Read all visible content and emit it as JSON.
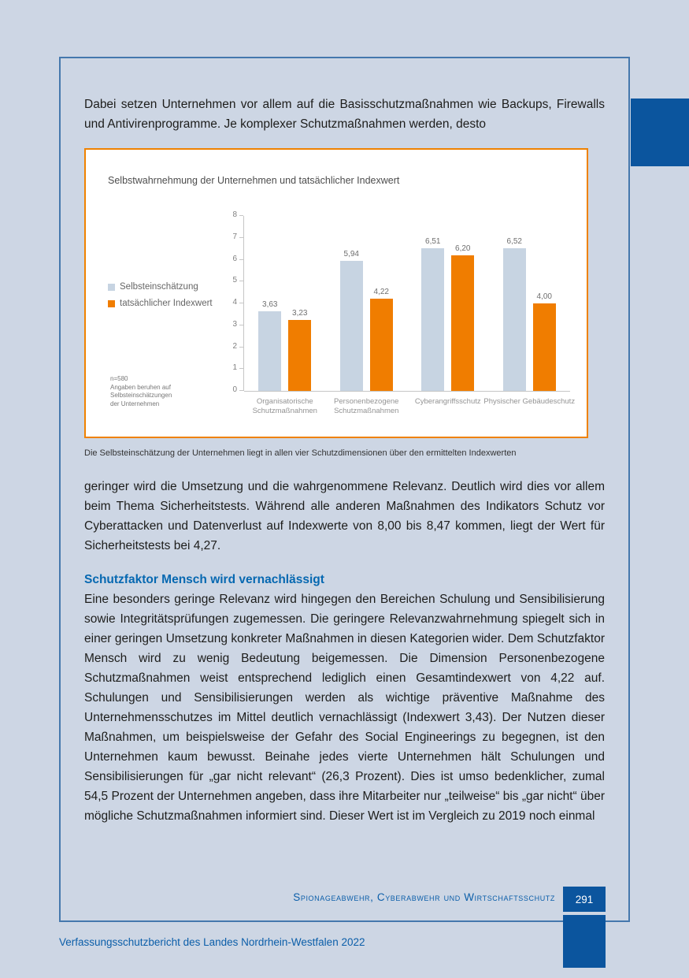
{
  "colors": {
    "page_background": "#cdd6e4",
    "frame_border_blue": "#4578ad",
    "dark_blue": "#0b559e",
    "heading_blue": "#0668b1",
    "chart_border_orange": "#ef8200",
    "bar_light_blue": "#c7d4e2",
    "bar_orange": "#f07d00"
  },
  "intro_paragraph": "Dabei setzen Unternehmen vor allem auf die Basisschutzmaßnahmen wie Backups, Firewalls und Antivirenprogramme. Je komplexer Schutzmaßnahmen werden, desto",
  "chart_data": {
    "type": "bar",
    "title": "Selbstwahrnehmung der Unternehmen und tatsächlicher Indexwert",
    "categories": [
      "Organisatorische Schutzmaßnahmen",
      "Personenbezogene Schutzmaßnahmen",
      "Cyberangriffsschutz",
      "Physischer Gebäudeschutz"
    ],
    "series": [
      {
        "name": "Selbsteinschätzung",
        "color": "#c7d4e2",
        "values": [
          3.63,
          5.94,
          6.51,
          6.52
        ],
        "value_labels": [
          "3,63",
          "5,94",
          "6,51",
          "6,52"
        ]
      },
      {
        "name": "tatsächlicher Indexwert",
        "color": "#f07d00",
        "values": [
          3.23,
          4.22,
          6.2,
          4.0
        ],
        "value_labels": [
          "3,23",
          "4,22",
          "6,20",
          "4,00"
        ]
      }
    ],
    "ylim": [
      0,
      8
    ],
    "yticks": [
      0,
      1,
      2,
      3,
      4,
      5,
      6,
      7,
      8
    ],
    "grid": false,
    "legend_position": "left",
    "note": "n=580\nAngaben beruhen auf\nSelbsteinschätzungen\nder Unternehmen"
  },
  "chart_caption": "Die Selbsteinschätzung der Unternehmen liegt in allen vier Schutzdimensionen über den ermittelten Indexwerten",
  "paragraph_after_chart": "geringer wird die Umsetzung und die wahrgenommene Relevanz. Deutlich wird dies vor allem beim Thema Sicherheitstests. Während alle anderen Maßnahmen des Indikators Schutz vor Cyberattacken und Datenverlust auf Indexwerte von 8,00 bis 8,47 kommen, liegt der Wert für Sicherheitstests bei 4,27.",
  "section": {
    "heading": "Schutzfaktor Mensch wird vernachlässigt",
    "paragraph": "Eine besonders geringe Relevanz wird hingegen den Bereichen Schulung und Sensibilisierung sowie Integritätsprüfungen zugemessen. Die geringere Relevanzwahrnehmung spiegelt sich in einer geringen Umsetzung konkreter Maßnahmen in diesen Kategorien wider. Dem Schutzfaktor Mensch wird zu wenig Bedeutung beigemessen. Die Dimension Personenbezogene Schutzmaßnahmen weist entsprechend lediglich einen Gesamtindexwert von 4,22 auf. Schulungen und Sensibilisierungen werden als wichtige präventive Maßnahme des Unternehmensschutzes im Mittel deutlich vernachlässigt (Indexwert 3,43). Der Nutzen dieser Maßnahmen, um beispielsweise der Gefahr des Social Engineerings zu begegnen, ist den Unternehmen kaum bewusst. Beinahe jedes vierte Unternehmen hält Schulungen und Sensibilisierungen für „gar nicht relevant“ (26,3 Prozent). Dies ist umso bedenklicher, zumal 54,5 Prozent der Unternehmen angeben, dass ihre Mitarbeiter nur „teilweise“ bis „gar nicht“ über mögliche Schutzmaßnahmen informiert sind. Dieser Wert ist im Vergleich zu 2019 noch einmal"
  },
  "footer": {
    "chapter": "Spionageabwehr, Cyberabwehr und Wirtschaftsschutz",
    "page_number": "291"
  },
  "report_footer_line": "Verfassungsschutzbericht des Landes Nordrhein-Westfalen 2022"
}
